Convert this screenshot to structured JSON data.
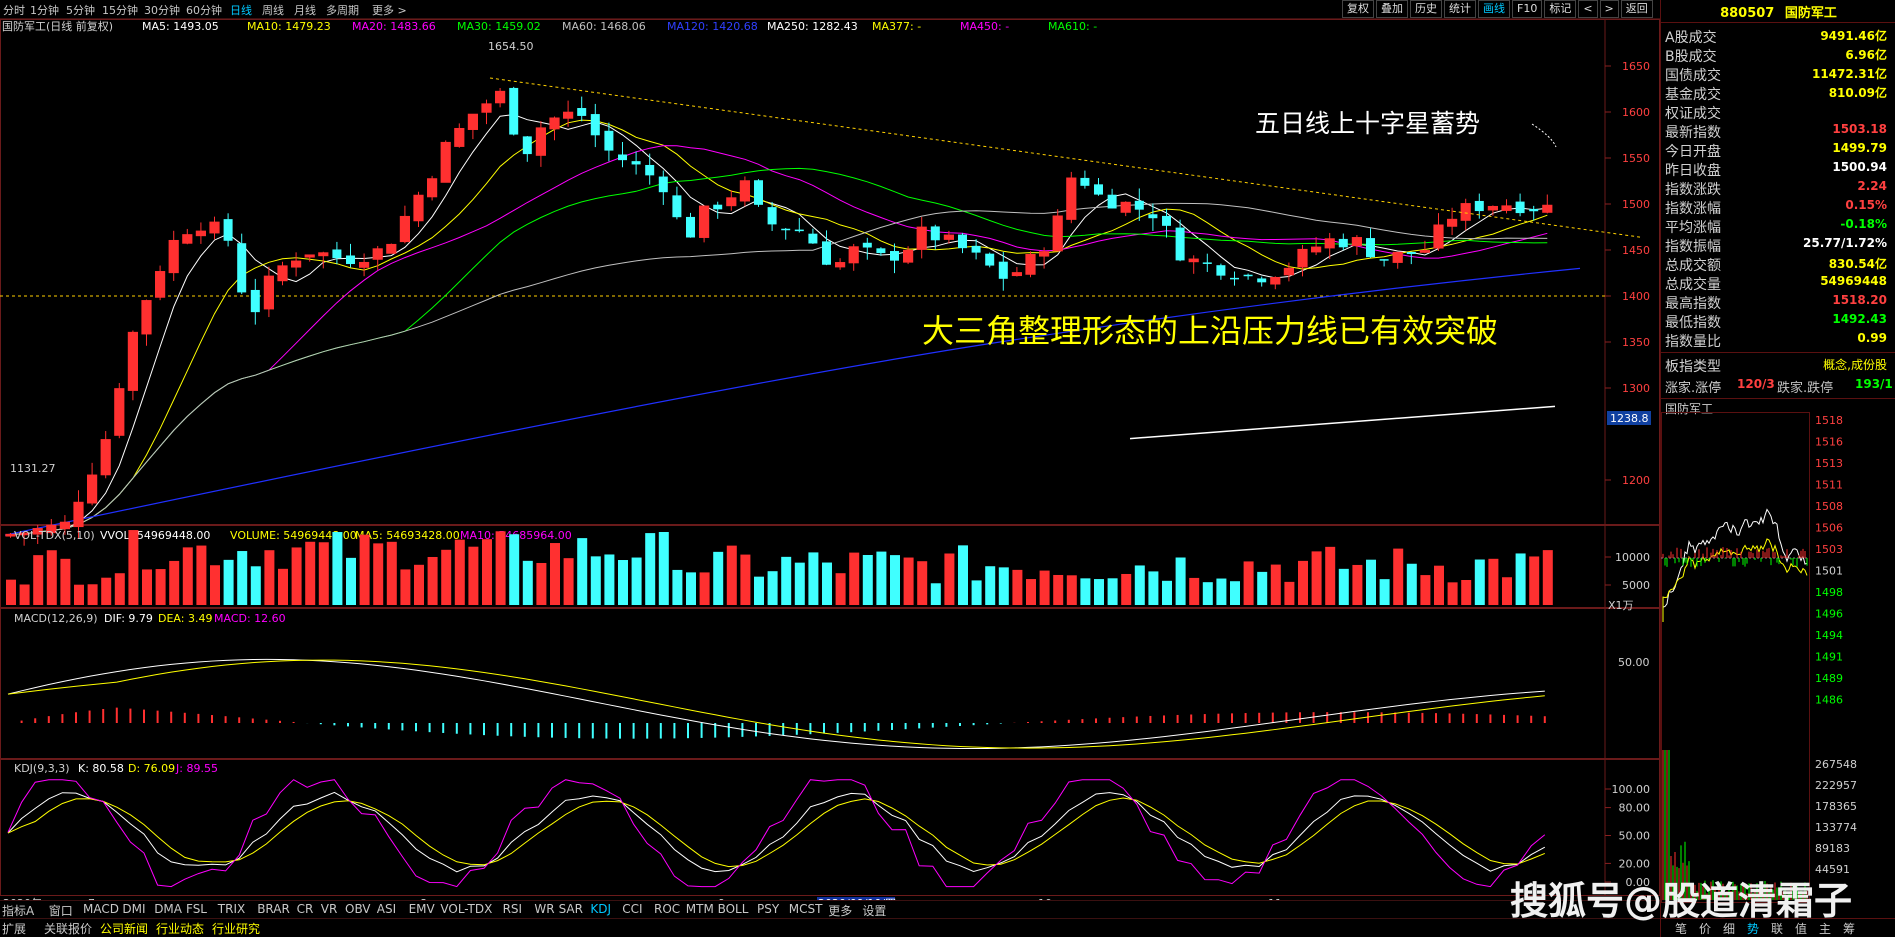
{
  "toolbar": {
    "periods": [
      "分时",
      "1分钟",
      "5分钟",
      "15分钟",
      "30分钟",
      "60分钟",
      "日线",
      "周线",
      "月线",
      "多周期",
      "更多 >"
    ],
    "active_period": "日线",
    "right_buttons": [
      "复权",
      "叠加",
      "历史",
      "统计",
      "画线",
      "F10",
      "标记",
      "<",
      ">",
      "返回"
    ],
    "active_right": "画线"
  },
  "main_chart": {
    "title": "国防军工(日线 前复权)",
    "ma": [
      {
        "label": "MA5: 1493.05",
        "color": "#ffffff"
      },
      {
        "label": "MA10: 1479.23",
        "color": "#ffff00"
      },
      {
        "label": "MA20: 1483.66",
        "color": "#ff00ff"
      },
      {
        "label": "MA30: 1459.02",
        "color": "#00ff00"
      },
      {
        "label": "MA60: 1468.06",
        "color": "#c0c0c0"
      },
      {
        "label": "MA120: 1420.68",
        "color": "#3040ff"
      },
      {
        "label": "MA250: 1282.43",
        "color": "#ffffff"
      },
      {
        "label": "MA377: -",
        "color": "#ffff00"
      },
      {
        "label": "MA450: -",
        "color": "#ff00ff"
      },
      {
        "label": "MA610: -",
        "color": "#00ff00"
      }
    ],
    "high_label": "1654.50",
    "low_label": "1131.27",
    "price_ticks": [
      "1650",
      "1600",
      "1550",
      "1500",
      "1450",
      "1400",
      "1350",
      "1300",
      "1200"
    ],
    "price_tag": "1238.8",
    "annotation_star": "五日线上十字星蓄势",
    "annotation_main": "大三角整理形态的上沿压力线已有效突破"
  },
  "vol_chart": {
    "title": "VOL-TDX(5,10)",
    "vvol": "VVOL: 54969448.00",
    "volume": "VOLUME: 54969448.00",
    "ma5": "MA5: 54693428.00",
    "ma10": "MA10: 54685964.00",
    "ticks": [
      "10000",
      "5000"
    ],
    "unit": "X1万"
  },
  "macd_chart": {
    "title": "MACD(12,26,9)",
    "dif": "DIF: 9.79",
    "dea": "DEA: 3.49",
    "macd": "MACD: 12.60",
    "ticks": [
      "50.00"
    ]
  },
  "kdj_chart": {
    "title": "KDJ(9,3,3)",
    "k": "K: 80.58",
    "d": "D: 76.09",
    "j": "J: 89.55",
    "ticks": [
      "100.00",
      "80.00",
      "50.00",
      "20.00",
      "0.00"
    ]
  },
  "date_axis": {
    "labels": [
      "2020年",
      "7",
      "8",
      "9",
      "2020/09/10/四",
      "10",
      "11"
    ]
  },
  "bottom_tabs_1": [
    "指标A",
    "窗口",
    "MACD",
    "DMI",
    "DMA",
    "FSL",
    "TRIX",
    "BRAR",
    "CR",
    "VR",
    "OBV",
    "ASI",
    "EMV",
    "VOL-TDX",
    "RSI",
    "WR",
    "SAR",
    "KDJ",
    "CCI",
    "ROC",
    "MTM",
    "BOLL",
    "PSY",
    "MCST",
    "更多",
    "设置"
  ],
  "bottom_tabs_1_active": "KDJ",
  "bottom_tabs_2": [
    "扩展",
    "关联报价",
    "公司新闻",
    "行业动态",
    "行业研究"
  ],
  "right_panel": {
    "code": "880507",
    "name": "国防军工",
    "rows": [
      {
        "label": "A股成交",
        "value": "9491.46亿",
        "color": "#ffff00"
      },
      {
        "label": "B股成交",
        "value": "6.96亿",
        "color": "#ffff00"
      },
      {
        "label": "国债成交",
        "value": "11472.31亿",
        "color": "#ffff00"
      },
      {
        "label": "基金成交",
        "value": "810.09亿",
        "color": "#ffff00"
      },
      {
        "label": "权证成交",
        "value": "",
        "color": "#ffff00"
      },
      {
        "label": "最新指数",
        "value": "1503.18",
        "color": "#ff4040"
      },
      {
        "label": "今日开盘",
        "value": "1499.79",
        "color": "#ffff00"
      },
      {
        "label": "昨日收盘",
        "value": "1500.94",
        "color": "#ffffff"
      },
      {
        "label": "指数涨跌",
        "value": "2.24",
        "color": "#ff4040"
      },
      {
        "label": "指数涨幅",
        "value": "0.15%",
        "color": "#ff4040"
      },
      {
        "label": "平均涨幅",
        "value": "-0.18%",
        "color": "#00ff00"
      },
      {
        "label": "指数振幅",
        "value": "25.77/1.72%",
        "color": "#ffffff"
      },
      {
        "label": "总成交额",
        "value": "830.54亿",
        "color": "#ffff00"
      },
      {
        "label": "总成交量",
        "value": "54969448",
        "color": "#ffff00"
      },
      {
        "label": "最高指数",
        "value": "1518.20",
        "color": "#ff4040"
      },
      {
        "label": "最低指数",
        "value": "1492.43",
        "color": "#00ff00"
      },
      {
        "label": "指数量比",
        "value": "0.99",
        "color": "#ffff00"
      }
    ],
    "type_label": "板指类型",
    "type_value": "概念,成份股",
    "updown_label": "涨家.涨停",
    "updown_value": "120/3",
    "down_label": "跌家.跌停",
    "down_value": "193/1",
    "mini_title": "国防军工",
    "mini_ticks": [
      "1518",
      "1516",
      "1513",
      "1511",
      "1508",
      "1506",
      "1503",
      "1501",
      "1498",
      "1496",
      "1494",
      "1491",
      "1489",
      "1486"
    ],
    "mini_vol_ticks": [
      "267548",
      "222957",
      "178365",
      "133774",
      "89183",
      "44591"
    ],
    "bottom_tabs": [
      "笔",
      "价",
      "细",
      "势",
      "联",
      "值",
      "主",
      "筹"
    ],
    "bottom_tabs_active": "势"
  },
  "watermark": "搜狐号@股道清霜子"
}
